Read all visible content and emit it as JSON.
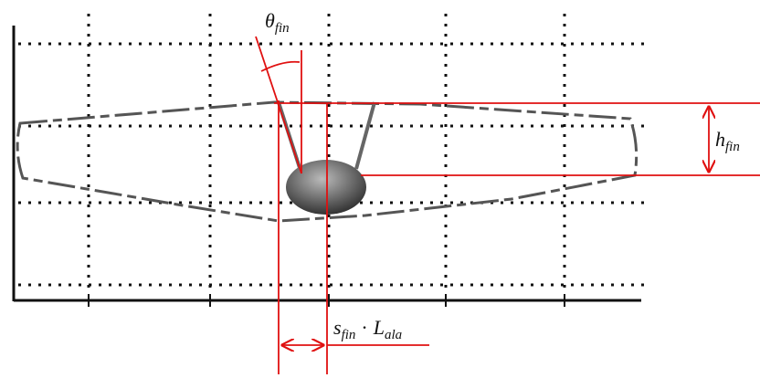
{
  "labels": {
    "theta": {
      "symbol": "θ",
      "subscript": "fin"
    },
    "height": {
      "symbol": "h",
      "subscript": "fin"
    },
    "offset": {
      "symbol": "s",
      "subscript": "fin",
      "operator": "·",
      "symbol2": "L",
      "subscript2": "ala"
    }
  }
}
